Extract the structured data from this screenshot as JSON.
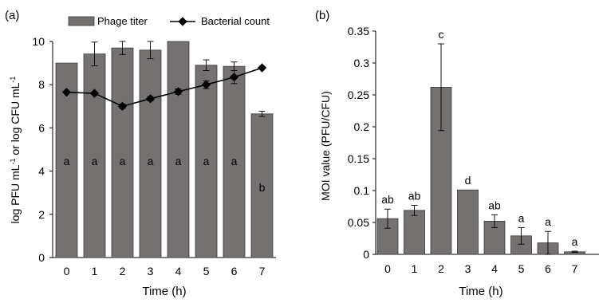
{
  "chart_data": [
    {
      "panel": "(a)",
      "type": "bar+line",
      "xlabel": "Time (h)",
      "ylabel_parts": [
        "log PFU mL",
        "-1",
        " or log CFU mL",
        "-1"
      ],
      "categories": [
        "0",
        "1",
        "2",
        "3",
        "4",
        "5",
        "6",
        "7"
      ],
      "ylim": [
        0,
        10
      ],
      "yticks": [
        "0",
        "2",
        "4",
        "6",
        "8",
        "10"
      ],
      "legend": {
        "placement": "top",
        "entries": [
          "Phage titer",
          "Bacterial count"
        ]
      },
      "series": [
        {
          "name": "Phage titer",
          "kind": "bar",
          "color": "#767171",
          "values": [
            9.0,
            9.42,
            9.7,
            9.6,
            10.0,
            8.9,
            8.85,
            6.65
          ],
          "errors": [
            0.0,
            0.55,
            0.3,
            0.4,
            0.0,
            0.25,
            0.2,
            0.12
          ],
          "letters": [
            "a",
            "a",
            "a",
            "a",
            "a",
            "a",
            "a",
            "b"
          ]
        },
        {
          "name": "Bacterial count",
          "kind": "line",
          "color": "#000000",
          "values": [
            7.65,
            7.6,
            7.0,
            7.35,
            7.68,
            8.0,
            8.35,
            8.78
          ],
          "errors": [
            0.0,
            0.0,
            0.1,
            0.1,
            0.12,
            0.18,
            0.3,
            0.0
          ]
        }
      ]
    },
    {
      "panel": "(b)",
      "type": "bar",
      "xlabel": "Time (h)",
      "ylabel": "MOI value (PFU/CFU)",
      "categories": [
        "0",
        "1",
        "2",
        "3",
        "4",
        "5",
        "6",
        "7"
      ],
      "ylim": [
        0,
        0.35
      ],
      "yticks": [
        "0",
        "0.05",
        "0.1",
        "0.15",
        "0.2",
        "0.25",
        "0.3",
        "0.35"
      ],
      "color": "#767171",
      "values": [
        0.056,
        0.069,
        0.262,
        0.101,
        0.052,
        0.029,
        0.018,
        0.004
      ],
      "errors": [
        0.015,
        0.008,
        0.068,
        0.0,
        0.01,
        0.013,
        0.018,
        0.001
      ],
      "letters": [
        "ab",
        "ab",
        "c",
        "d",
        "ab",
        "a",
        "a",
        "a"
      ]
    }
  ]
}
